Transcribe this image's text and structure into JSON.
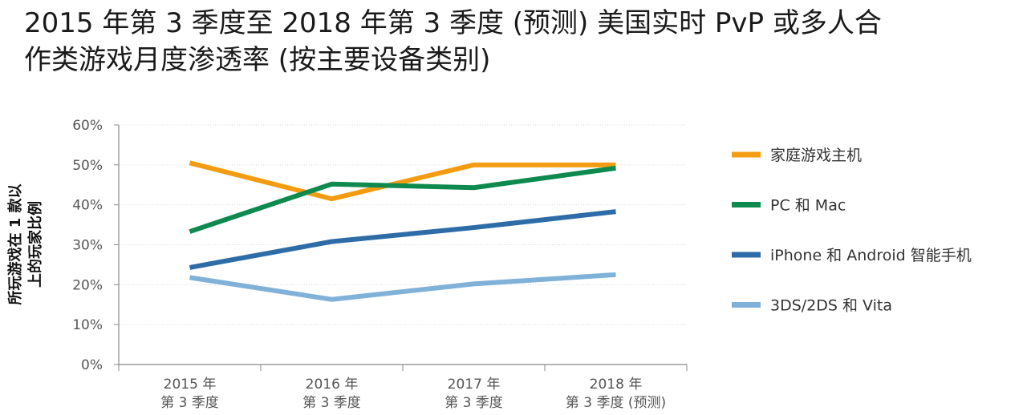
{
  "title": {
    "line1": "2015 年第 3 季度至 2018 年第 3 季度 (预测) 美国实时 PvP 或多人合",
    "line2": "作类游戏月度渗透率 (按主要设备类别)"
  },
  "chart_data": {
    "type": "line",
    "ylabel_line1": "所玩游戏在 1 款以",
    "ylabel_line2": "上的玩家比例",
    "ylim": [
      0,
      60
    ],
    "yticks": [
      "0%",
      "10%",
      "20%",
      "30%",
      "40%",
      "50%",
      "60%"
    ],
    "ytick_values": [
      0,
      10,
      20,
      30,
      40,
      50,
      60
    ],
    "categories": [
      {
        "line1": "2015 年",
        "line2": "第 3 季度"
      },
      {
        "line1": "2016 年",
        "line2": "第 3 季度"
      },
      {
        "line1": "2017 年",
        "line2": "第 3 季度"
      },
      {
        "line1": "2018 年",
        "line2": "第 3 季度 (预测)"
      }
    ],
    "grid": "horizontal dotted",
    "legend_placement": "right",
    "series": [
      {
        "name": "家庭游戏主机",
        "color": "#f39c12",
        "values": [
          50.5,
          41.5,
          50,
          50
        ]
      },
      {
        "name": "PC 和 Mac",
        "color": "#0e8a4f",
        "values": [
          33.3,
          45.2,
          44.3,
          49.2
        ]
      },
      {
        "name": "iPhone 和 Android 智能手机",
        "color": "#2e6ca8",
        "values": [
          24.3,
          30.8,
          34.3,
          38.3
        ]
      },
      {
        "name": "3DS/2DS 和 Vita",
        "color": "#7fb1d9",
        "values": [
          21.8,
          16.3,
          20.2,
          22.5
        ]
      }
    ]
  }
}
